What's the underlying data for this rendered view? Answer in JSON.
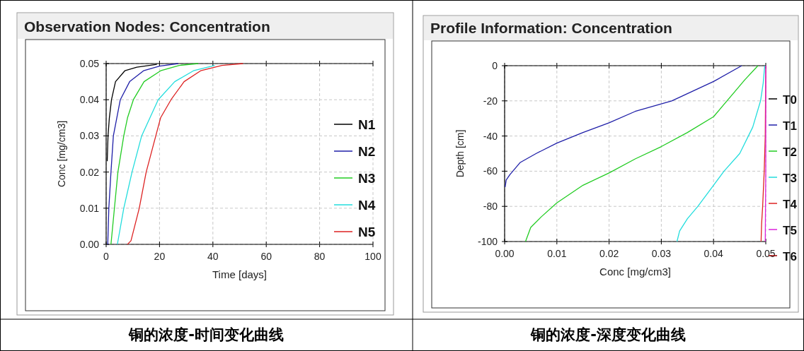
{
  "chart_data": [
    {
      "type": "line",
      "title": "Observation Nodes: Concentration",
      "xlabel": "Time [days]",
      "ylabel": "Conc [mg/cm3]",
      "xlim": [
        0,
        100
      ],
      "xticks": [
        0,
        20,
        40,
        60,
        80,
        100
      ],
      "ylim": [
        0,
        0.05
      ],
      "yticks": [
        {
          "value": 0,
          "label": "0.00"
        },
        {
          "value": 0.01,
          "label": "0.01"
        },
        {
          "value": 0.02,
          "label": "0.02"
        },
        {
          "value": 0.03,
          "label": "0.03"
        },
        {
          "value": 0.04,
          "label": "0.04"
        },
        {
          "value": 0.05,
          "label": "0.05"
        }
      ],
      "grid": true,
      "legend": "right",
      "annotations": [
        "铜的浓度-时间变化曲线"
      ],
      "series": [
        {
          "name": "N1",
          "color": "#000000",
          "x": [
            0.4,
            0.7,
            1.2,
            2,
            3.5,
            7,
            11.5,
            19
          ],
          "values": [
            0.023,
            0.03,
            0.035,
            0.04,
            0.045,
            0.048,
            0.049,
            0.0498
          ]
        },
        {
          "name": "N2",
          "color": "#1f1fa8",
          "x": [
            0.6,
            1,
            1.8,
            2.7,
            5.3,
            8.8,
            14,
            20,
            27
          ],
          "values": [
            0,
            0.01,
            0.02,
            0.03,
            0.04,
            0.045,
            0.048,
            0.0493,
            0.05
          ]
        },
        {
          "name": "N3",
          "color": "#22cc22",
          "x": [
            1.8,
            3.1,
            4.4,
            6.6,
            8,
            10.2,
            14.2,
            20.4,
            27.4,
            34.5
          ],
          "values": [
            0,
            0.01,
            0.02,
            0.03,
            0.035,
            0.04,
            0.045,
            0.048,
            0.0495,
            0.05
          ]
        },
        {
          "name": "N4",
          "color": "#22dddd",
          "x": [
            4.2,
            6.6,
            9.7,
            13.3,
            19.5,
            25.7,
            32.7,
            40.7
          ],
          "values": [
            0,
            0.01,
            0.02,
            0.03,
            0.04,
            0.045,
            0.048,
            0.0495
          ]
        },
        {
          "name": "N5",
          "color": "#dd2222",
          "x": [
            8,
            9.3,
            12.4,
            15,
            18.6,
            20.4,
            24.3,
            29.2,
            35.4,
            43.4,
            51.3
          ],
          "values": [
            0,
            0.001,
            0.01,
            0.02,
            0.03,
            0.035,
            0.04,
            0.045,
            0.048,
            0.0495,
            0.05
          ]
        }
      ]
    },
    {
      "type": "line",
      "title": "Profile Information:  Concentration",
      "xlabel": "Conc [mg/cm3]",
      "ylabel": "Depth [cm]",
      "xlim": [
        0,
        0.05
      ],
      "xticks": [
        {
          "value": 0,
          "label": "0.00"
        },
        {
          "value": 0.01,
          "label": "0.01"
        },
        {
          "value": 0.02,
          "label": "0.02"
        },
        {
          "value": 0.03,
          "label": "0.03"
        },
        {
          "value": 0.04,
          "label": "0.04"
        },
        {
          "value": 0.05,
          "label": "0.05"
        }
      ],
      "ylim": [
        -100,
        0
      ],
      "yticks": [
        -100,
        -80,
        -60,
        -40,
        -20,
        0
      ],
      "grid": true,
      "legend": "right",
      "annotations": [
        "铜的浓度-深度变化曲线"
      ],
      "series": [
        {
          "name": "T0",
          "color": "#000000",
          "values": [
            null,
            null
          ]
        },
        {
          "name": "T1",
          "color": "#1f1fa8",
          "x": [
            0.0454,
            0.04,
            0.032,
            0.025,
            0.02,
            0.015,
            0.01,
            0.006,
            0.003,
            0.001,
            0.0003,
            0.0001
          ],
          "values": [
            0,
            -9,
            -20,
            -26,
            -32.5,
            -38,
            -44,
            -50,
            -55,
            -62,
            -65,
            -69
          ]
        },
        {
          "name": "T2",
          "color": "#22cc22",
          "x": [
            0.0485,
            0.046,
            0.044,
            0.04,
            0.035,
            0.03,
            0.025,
            0.02,
            0.015,
            0.01,
            0.007,
            0.005,
            0.004
          ],
          "values": [
            0,
            -8,
            -15,
            -29,
            -38,
            -46,
            -53,
            -61,
            -68,
            -78,
            -86,
            -92,
            -100
          ]
        },
        {
          "name": "T3",
          "color": "#22dddd",
          "x": [
            0.0498,
            0.0495,
            0.049,
            0.0475,
            0.045,
            0.042,
            0.04,
            0.037,
            0.035,
            0.0335,
            0.033
          ],
          "values": [
            0,
            -10,
            -20,
            -35,
            -50,
            -60,
            -68,
            -80,
            -87,
            -94,
            -100
          ]
        },
        {
          "name": "T4",
          "color": "#dd2222",
          "x": [
            0.05,
            0.0499,
            0.0497,
            0.0494,
            0.0492,
            0.0491
          ],
          "values": [
            0,
            -40,
            -60,
            -80,
            -90,
            -100
          ]
        },
        {
          "name": "T5",
          "color": "#dd22dd",
          "x": [
            0.05,
            0.05,
            0.0499
          ],
          "values": [
            0,
            -60,
            -100
          ]
        },
        {
          "name": "T6",
          "color": "#990000",
          "values": [
            null,
            null
          ]
        }
      ]
    }
  ]
}
